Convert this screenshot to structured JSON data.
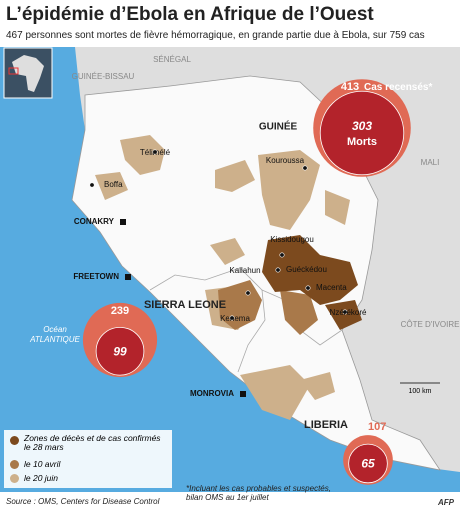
{
  "header": {
    "title": "L’épidémie d’Ebola en Afrique de l’Ouest",
    "subtitle": "467 personnes sont mortes de fièvre hémorragique, en grande partie due à Ebola, sur 759 cas"
  },
  "map": {
    "countries": [
      "SÉNÉGAL",
      "GUINÉE-BISSAU",
      "GUINÉE",
      "MALI",
      "SIERRA LEONE",
      "CÔTE D'IVOIRE",
      "LIBERIA"
    ],
    "ocean": [
      "Océan",
      "ATLANTIQUE"
    ],
    "places": [
      "Télimélé",
      "Boffa",
      "CONAKRY",
      "FREETOWN",
      "Kouroussa",
      "Kissidougou",
      "Guéckédou",
      "Macenta",
      "Kailahun",
      "Kenema",
      "Nzérékoré",
      "MONROVIA"
    ],
    "scale": "100 km"
  },
  "bubbles": [
    {
      "cases": 413,
      "cases_label": "Cas recensés*",
      "deaths": 303,
      "deaths_label": "Morts"
    },
    {
      "cases": 239,
      "deaths": 99
    },
    {
      "cases": 107,
      "deaths": 65
    }
  ],
  "legend": {
    "items": [
      "Zones de décès et de cas confirmés le 28 mars",
      "le 10 avril",
      "le 20 juin"
    ]
  },
  "footnote": "*Incluant les cas probables et suspectés, bilan OMS au 1er juillet",
  "source": "Source : OMS, Centers for Disease Control",
  "credit": "AFP"
}
